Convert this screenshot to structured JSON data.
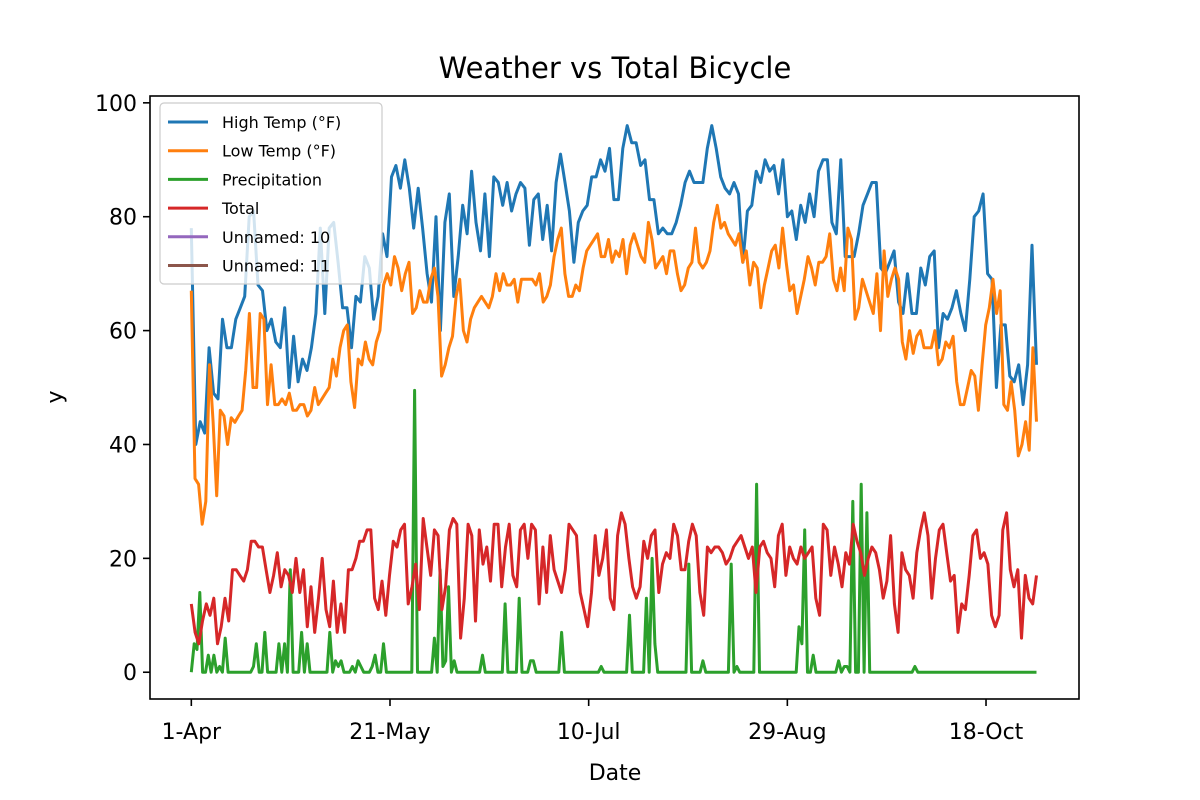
{
  "chart_data": {
    "type": "line",
    "title": "Weather vs Total Bicycle",
    "xlabel": "Date",
    "ylabel": "y",
    "ylim": [
      -4.7,
      101.2
    ],
    "y_ticks": [
      0,
      20,
      40,
      60,
      80,
      100
    ],
    "x_ticks": [
      "1-Apr",
      "21-May",
      "10-Jul",
      "29-Aug",
      "18-Oct"
    ],
    "x_tick_days": [
      0,
      50,
      100,
      150,
      200
    ],
    "x_range_days": [
      -10.4,
      223.4
    ],
    "x_dates_start": "1-Apr",
    "grid": false,
    "legend_position": "upper-left",
    "series": [
      {
        "name": "High Temp (°F)",
        "color": "#1f77b4",
        "x_step_days": 1,
        "values": [
          78,
          40,
          44,
          42,
          57,
          49,
          48,
          62,
          57,
          57,
          62,
          64,
          66,
          80,
          81,
          68,
          67,
          60,
          62,
          58,
          57,
          64,
          50,
          59,
          51,
          55,
          53,
          57,
          63,
          78,
          63,
          78,
          79,
          72,
          64,
          64,
          57,
          66,
          65,
          73,
          71,
          62,
          66,
          77,
          73,
          87,
          89,
          85,
          90,
          85,
          78,
          85,
          78,
          70,
          65,
          80,
          60,
          79,
          84,
          66,
          73,
          82,
          77,
          88,
          79,
          74,
          84,
          73,
          87,
          86,
          82,
          86,
          81,
          84,
          86,
          85,
          75,
          83,
          84,
          76,
          82,
          74,
          86,
          91,
          86,
          81,
          72,
          79,
          81,
          82,
          87,
          87,
          90,
          88,
          92,
          83,
          83,
          92,
          96,
          93,
          93,
          89,
          90,
          83,
          83,
          77,
          78,
          77,
          77,
          79,
          82,
          86,
          88,
          86,
          86,
          86,
          92,
          96,
          92,
          87,
          85,
          84,
          86,
          84,
          72,
          81,
          82,
          88,
          86,
          90,
          88,
          89,
          84,
          90,
          80,
          81,
          76,
          82,
          79,
          84,
          80,
          88,
          90,
          90,
          79,
          77,
          90,
          73,
          73,
          73,
          77,
          82,
          84,
          86,
          86,
          71,
          70,
          72,
          74,
          65,
          63,
          70,
          63,
          63,
          71,
          68,
          73,
          74,
          57,
          63,
          62,
          64,
          67,
          63,
          60,
          69,
          80,
          81,
          84,
          70,
          69,
          50,
          61,
          61,
          52,
          51,
          54,
          47,
          54,
          75,
          54
        ]
      },
      {
        "name": "Low Temp (°F)",
        "color": "#ff7f0e",
        "x_step_days": 1,
        "values": [
          67,
          34,
          33,
          26,
          30,
          54,
          44,
          31,
          46,
          45,
          40,
          44.7,
          43.9,
          45,
          46,
          53,
          63,
          50,
          50,
          63,
          62,
          47,
          54,
          47,
          47,
          48,
          47,
          49,
          46,
          46,
          47,
          47,
          45,
          46,
          50,
          47,
          48,
          49,
          50,
          55,
          52,
          57,
          60,
          61,
          51,
          46.5,
          55,
          54,
          58,
          55,
          54,
          58,
          60,
          68,
          70,
          68,
          73,
          71,
          67,
          70,
          72,
          63,
          64,
          67,
          65,
          65,
          69,
          71,
          66,
          52,
          54,
          57,
          59,
          66,
          69,
          60,
          58,
          62,
          64,
          65,
          66,
          65,
          64,
          66,
          70,
          67,
          70,
          68,
          68,
          69,
          65,
          69,
          69,
          69,
          69,
          68,
          70,
          65,
          66,
          68,
          73,
          76,
          78,
          70,
          66,
          66,
          68,
          67,
          71,
          74,
          75,
          76,
          77,
          73,
          73,
          76,
          72,
          74,
          73,
          76,
          70,
          75,
          77,
          75,
          73,
          72,
          79,
          76,
          71,
          72,
          73,
          70,
          74,
          74,
          70,
          67,
          68,
          71,
          72,
          78,
          72,
          71,
          72,
          74,
          79,
          82,
          78,
          79,
          77,
          76,
          75,
          77,
          72,
          74,
          68,
          72,
          71,
          64,
          68,
          71,
          74,
          75,
          71,
          78,
          72,
          67,
          68,
          63,
          66,
          69,
          73,
          71,
          68,
          72,
          72,
          73,
          77,
          69,
          67,
          71,
          67,
          78,
          76,
          62,
          64,
          69,
          67,
          65,
          63,
          70,
          60,
          74,
          66,
          69,
          71,
          69,
          58,
          55,
          60,
          56,
          59,
          60,
          57,
          57,
          57,
          60,
          54,
          55,
          58,
          57,
          59,
          51,
          47,
          47,
          50,
          53,
          52,
          46,
          54,
          61,
          64,
          69,
          63,
          67,
          47,
          46,
          51,
          46,
          38,
          40,
          44,
          39,
          57,
          44
        ]
      },
      {
        "name": "Precipitation",
        "color": "#2ca02c",
        "x_step_days": 1,
        "values": [
          0,
          5,
          4,
          14,
          0,
          0,
          3,
          0,
          3,
          0,
          1,
          0,
          6,
          0,
          0,
          0,
          0,
          0,
          0,
          0,
          0,
          0,
          1,
          5,
          0,
          0,
          7,
          0,
          0,
          0,
          0,
          5,
          0,
          5,
          0,
          18,
          0,
          0,
          0,
          7,
          0,
          5,
          0,
          0,
          0,
          0,
          0,
          0,
          0,
          7,
          0,
          2,
          1,
          2,
          0,
          0,
          0,
          1,
          0,
          2,
          1,
          0,
          0,
          0,
          1,
          3,
          0,
          0,
          5,
          0,
          0,
          0,
          0,
          0,
          0,
          0,
          0,
          0,
          0,
          49.5,
          0,
          0,
          0,
          0,
          0,
          0,
          6,
          0,
          18,
          1,
          2,
          15,
          0,
          2,
          0,
          0,
          0,
          0,
          0,
          0,
          0,
          0,
          0,
          3,
          0,
          0,
          0,
          0,
          0,
          0,
          0,
          12,
          0,
          0,
          0,
          0,
          13,
          0,
          0,
          0,
          2,
          2,
          0,
          0,
          0,
          0,
          0,
          0,
          0,
          0,
          0,
          7,
          0,
          0,
          0,
          0,
          0,
          0,
          0,
          0,
          0,
          0,
          0,
          0,
          0,
          1,
          0,
          0,
          0,
          0,
          0,
          0,
          0,
          0,
          0,
          10,
          0,
          0,
          0,
          0,
          0,
          13,
          0,
          20,
          5,
          0,
          0,
          0,
          0,
          0,
          0,
          0,
          0,
          0,
          0,
          0,
          19,
          0,
          0,
          0,
          0,
          2,
          0,
          0,
          0,
          0,
          0,
          0,
          0,
          0,
          0,
          19,
          0,
          1,
          0,
          0,
          0,
          0,
          0,
          0,
          33,
          0,
          0,
          0,
          0,
          0,
          0,
          0,
          0,
          0,
          0,
          0,
          0,
          0,
          0,
          8,
          5,
          25,
          0,
          0,
          3,
          0,
          0,
          0,
          0,
          0,
          0,
          0,
          0,
          2,
          0,
          1,
          1,
          0,
          30,
          0,
          0,
          33,
          0,
          28,
          0,
          0,
          0,
          0,
          0,
          0,
          0,
          0,
          0,
          0,
          0,
          0,
          0,
          0,
          0,
          0,
          1,
          0,
          0,
          0,
          0,
          0,
          0,
          0,
          0,
          0,
          0,
          0,
          0,
          0,
          0,
          0,
          0,
          0,
          0,
          0,
          0,
          0,
          0,
          0,
          0,
          0,
          0,
          0,
          0,
          0,
          0,
          0,
          0,
          0,
          0,
          0,
          0,
          0,
          0,
          0,
          0,
          0,
          0,
          0
        ]
      },
      {
        "name": "Total",
        "color": "#d62728",
        "x_step_days": 1,
        "values": [
          12,
          7,
          5,
          9,
          12,
          10,
          13,
          5,
          8,
          13,
          9,
          18,
          18,
          17,
          16,
          18,
          23,
          23,
          22,
          22,
          18,
          14,
          17,
          21,
          15,
          18,
          17,
          14,
          20,
          14,
          18,
          8,
          15,
          7,
          13,
          20,
          11,
          8,
          16,
          7,
          12,
          7,
          18,
          18,
          20,
          23,
          23,
          25,
          25,
          13,
          11,
          16,
          10,
          17,
          23,
          22,
          25,
          26,
          12,
          15,
          19,
          11,
          27,
          22,
          17,
          25,
          24,
          11,
          15,
          25,
          27,
          26,
          6,
          13,
          26,
          24,
          9,
          25,
          19,
          22,
          16,
          26,
          26,
          15,
          22,
          26,
          17,
          15,
          25,
          26,
          20,
          26,
          25,
          12,
          22,
          14,
          24,
          18,
          16,
          14,
          18,
          26,
          25,
          24,
          14,
          11,
          8,
          14,
          24,
          17,
          20,
          25,
          13,
          11,
          24,
          28,
          26,
          20,
          15,
          13,
          15,
          23,
          20,
          24,
          25,
          14,
          19,
          21,
          20,
          26,
          24,
          18,
          18,
          23,
          26,
          24,
          14,
          10,
          22,
          21,
          22,
          22,
          21,
          19,
          20,
          22,
          23,
          24,
          22,
          20,
          22,
          14,
          22,
          23,
          21,
          20,
          15,
          24,
          26,
          17,
          22,
          20,
          19,
          22,
          20,
          21,
          22,
          13,
          10,
          26,
          25,
          17,
          22,
          19,
          15,
          21,
          19,
          26,
          23,
          21,
          17,
          20,
          22,
          21,
          18,
          13,
          16,
          24,
          12,
          7,
          21,
          18,
          17,
          13,
          21,
          25,
          28,
          24,
          13,
          20,
          25,
          26,
          21,
          16,
          17,
          7,
          12,
          11,
          17,
          24,
          25,
          20,
          21,
          19,
          10,
          8,
          10,
          25,
          28,
          18,
          15,
          18,
          6,
          17,
          13,
          12,
          17
        ]
      },
      {
        "name": "Unnamed: 10",
        "color": "#9467bd",
        "x_step_days": 1,
        "values": []
      },
      {
        "name": "Unnamed: 11",
        "color": "#8c564b",
        "x_step_days": 1,
        "values": []
      }
    ]
  }
}
